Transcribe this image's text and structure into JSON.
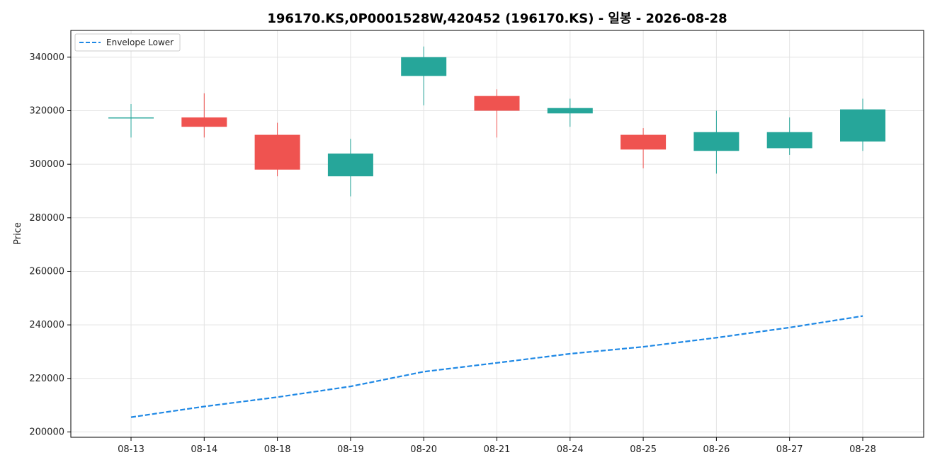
{
  "chart_data": {
    "type": "candlestick",
    "title": "196170.KS,0P0001528W,420452 (196170.KS) - 일봉 - 2026-08-28",
    "ylabel": "Price",
    "xlabel": "",
    "ylim": [
      198000,
      350000
    ],
    "yticks": [
      200000,
      220000,
      240000,
      260000,
      280000,
      300000,
      320000,
      340000
    ],
    "grid": true,
    "legend": {
      "position": "top-left",
      "entries": [
        "Envelope Lower"
      ]
    },
    "colors": {
      "up": "#26a69a",
      "down": "#ef5350",
      "envelope": "#1e88e5"
    },
    "categories": [
      "08-13",
      "08-14",
      "08-18",
      "08-19",
      "08-20",
      "08-21",
      "08-24",
      "08-25",
      "08-26",
      "08-27",
      "08-28"
    ],
    "candles": [
      {
        "date": "08-13",
        "open": 317500,
        "high": 322500,
        "low": 310000,
        "close": 317500
      },
      {
        "date": "08-14",
        "open": 317500,
        "high": 326500,
        "low": 310000,
        "close": 314000
      },
      {
        "date": "08-18",
        "open": 311000,
        "high": 315500,
        "low": 295500,
        "close": 298000
      },
      {
        "date": "08-19",
        "open": 295500,
        "high": 309500,
        "low": 288000,
        "close": 304000
      },
      {
        "date": "08-20",
        "open": 333000,
        "high": 344000,
        "low": 322000,
        "close": 340000
      },
      {
        "date": "08-21",
        "open": 325500,
        "high": 328000,
        "low": 310000,
        "close": 320000
      },
      {
        "date": "08-24",
        "open": 319000,
        "high": 324500,
        "low": 314000,
        "close": 321000
      },
      {
        "date": "08-25",
        "open": 311000,
        "high": 313500,
        "low": 298500,
        "close": 305500
      },
      {
        "date": "08-26",
        "open": 305000,
        "high": 320000,
        "low": 296500,
        "close": 312000
      },
      {
        "date": "08-27",
        "open": 306000,
        "high": 317500,
        "low": 303500,
        "close": 312000
      },
      {
        "date": "08-28",
        "open": 308500,
        "high": 324500,
        "low": 305000,
        "close": 320500
      }
    ],
    "series": [
      {
        "name": "Envelope Lower",
        "style": "dashed",
        "values": [
          205500,
          209500,
          213000,
          217000,
          222500,
          225800,
          229200,
          231800,
          235200,
          239000,
          243300
        ]
      }
    ]
  }
}
